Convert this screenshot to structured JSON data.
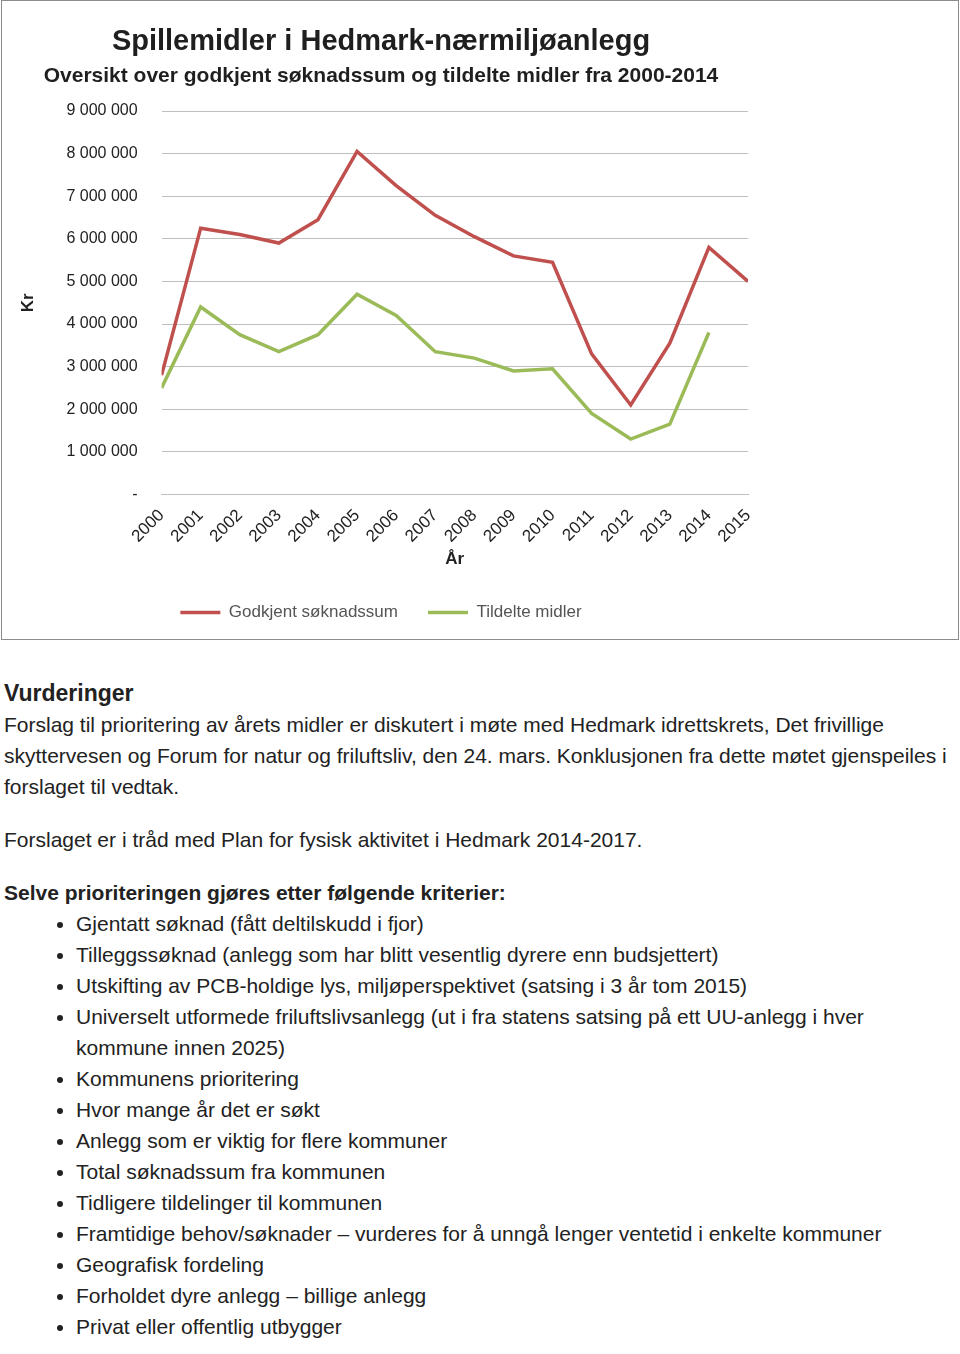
{
  "chart_data": {
    "type": "line",
    "title": "Spillemidler i Hedmark-nærmiljøanlegg",
    "subtitle": "Oversikt over godkjent søknadssum og tildelte midler fra 2000-2014",
    "x_label": "År",
    "y_label": "Kr",
    "categories": [
      "2000",
      "2001",
      "2002",
      "2003",
      "2004",
      "2005",
      "2006",
      "2007",
      "2008",
      "2009",
      "2010",
      "2011",
      "2012",
      "2013",
      "2014",
      "2015"
    ],
    "series": [
      {
        "name": "Godkjent søknadssum",
        "color": "#c0504d",
        "values": [
          2800000,
          6250000,
          6100000,
          5900000,
          6450000,
          8050000,
          7250000,
          6550000,
          6050000,
          5600000,
          5450000,
          3300000,
          2100000,
          3550000,
          5800000,
          5000000
        ]
      },
      {
        "name": "Tildelte midler",
        "color": "#9bbb59",
        "values": [
          2500000,
          4400000,
          3750000,
          3350000,
          3750000,
          4700000,
          4200000,
          3350000,
          3200000,
          2900000,
          2950000,
          1900000,
          1300000,
          1650000,
          3800000,
          null
        ]
      }
    ],
    "ylim": [
      0,
      9000000
    ],
    "yticks": [
      {
        "value": 0,
        "label": "-"
      },
      {
        "value": 1000000,
        "label": "1 000 000"
      },
      {
        "value": 2000000,
        "label": "2 000 000"
      },
      {
        "value": 3000000,
        "label": "3 000 000"
      },
      {
        "value": 4000000,
        "label": "4 000 000"
      },
      {
        "value": 5000000,
        "label": "5 000 000"
      },
      {
        "value": 6000000,
        "label": "6 000 000"
      },
      {
        "value": 7000000,
        "label": "7 000 000"
      },
      {
        "value": 8000000,
        "label": "8 000 000"
      },
      {
        "value": 9000000,
        "label": "9 000 000"
      }
    ],
    "grid": true,
    "legend": "bottom",
    "marker": "none",
    "line_style": "solid"
  },
  "document": {
    "heading": "Vurderinger",
    "paragraphs": [
      "Forslag til prioritering av årets midler er diskutert i møte med Hedmark idrettskrets, Det frivillige skyttervesen og Forum for natur og friluftsliv, den 24. mars. Konklusjonen fra dette møtet gjenspeiles i forslaget til vedtak.",
      "Forslaget er i tråd med Plan for fysisk aktivitet i Hedmark 2014-2017."
    ],
    "list_intro": "Selve prioriteringen gjøres etter følgende kriterier:",
    "list": [
      "Gjentatt søknad (fått deltilskudd i fjor)",
      "Tilleggssøknad (anlegg som har blitt vesentlig dyrere enn budsjettert)",
      "Utskifting av PCB-holdige lys, miljøperspektivet (satsing i 3 år tom 2015)",
      "Universelt utformede friluftslivsanlegg (ut i fra statens satsing på ett UU-anlegg i hver kommune innen 2025)",
      "Kommunens prioritering",
      "Hvor mange år det er søkt",
      "Anlegg som er viktig for flere kommuner",
      "Total søknadssum fra kommunen",
      "Tidligere tildelinger til kommunen",
      "Framtidige behov/søknader – vurderes for å unngå lenger ventetid i enkelte kommuner",
      "Geografisk fordeling",
      "Forholdet dyre anlegg – billige anlegg",
      "Privat eller offentlig utbygger"
    ]
  }
}
